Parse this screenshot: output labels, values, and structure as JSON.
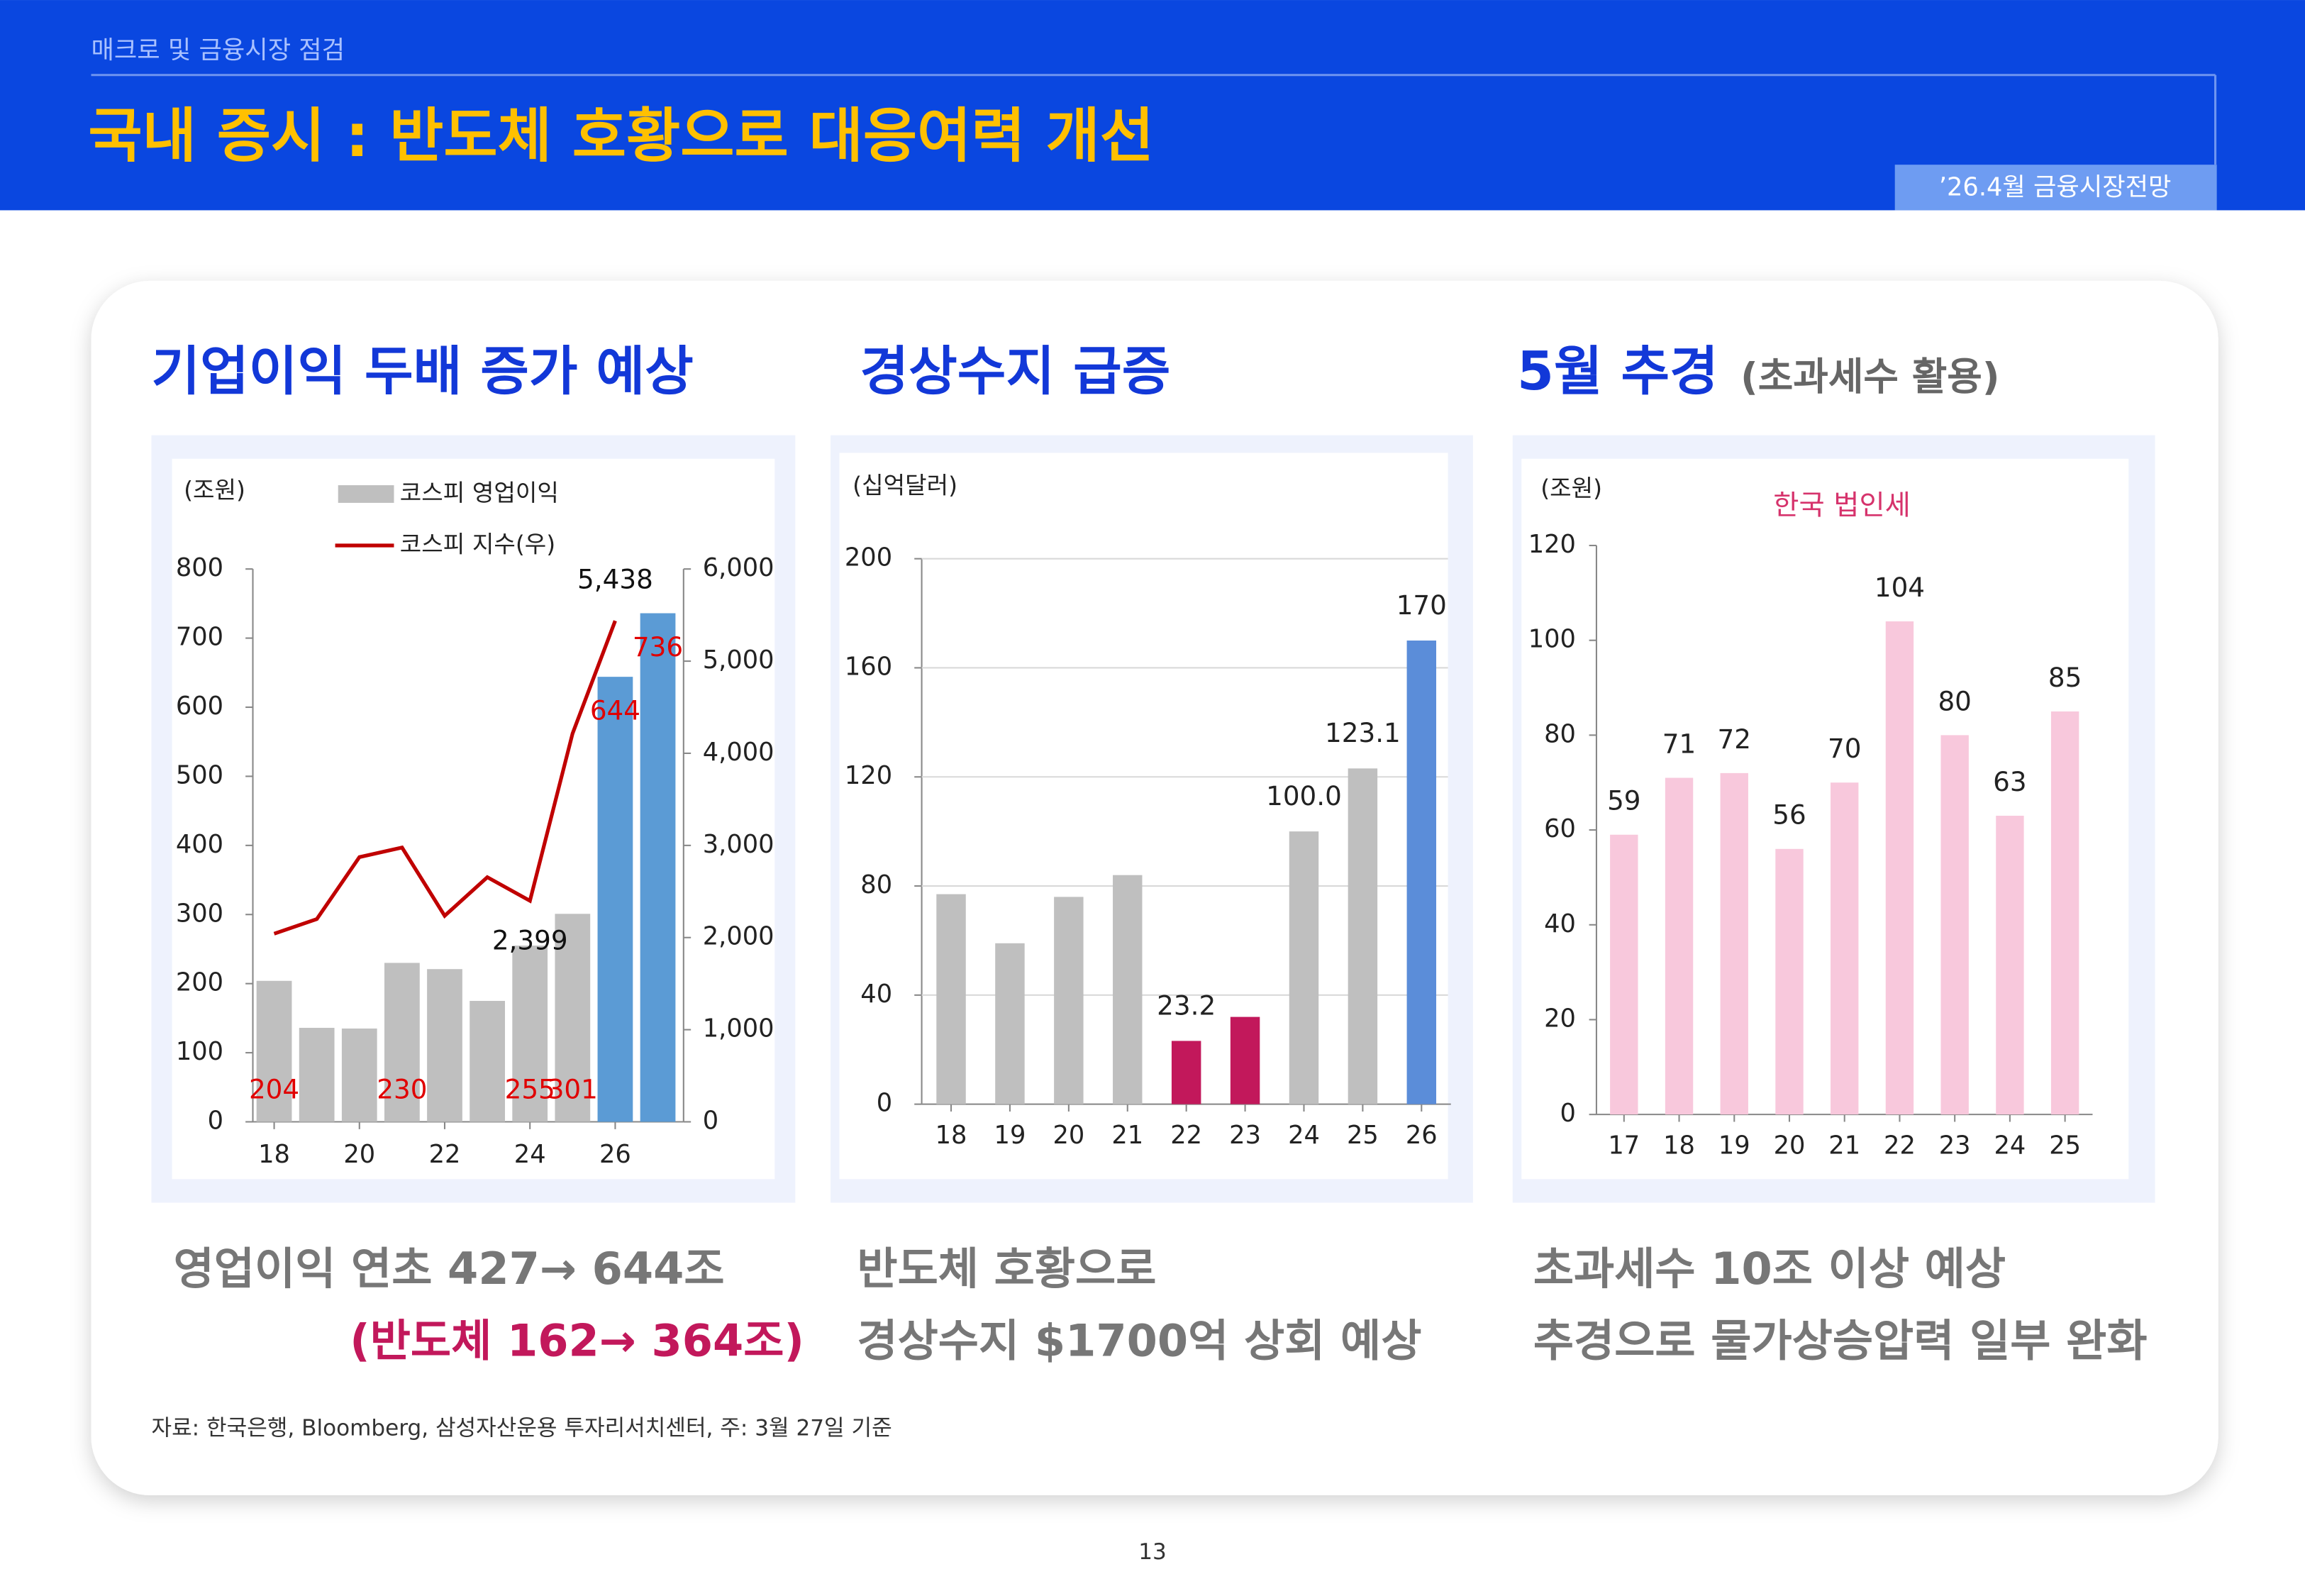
{
  "header": {
    "section": "매크로 및 금융시장 점검",
    "title": "국내 증시 : 반도체 호황으로 대응여력 개선",
    "badge": "’26.4월 금융시장전망"
  },
  "panels": [
    {
      "title": "기업이익 두배 증가 예상",
      "caption": [
        "영업이익 연초 427→ 644조",
        "(반도체 162→ 364조)"
      ]
    },
    {
      "title": "경상수지 급증",
      "caption": [
        "반도체 호황으로",
        "경상수지 $1700억 상회 예상"
      ]
    },
    {
      "title": "5월 추경",
      "subtitle": "(초과세수 활용)",
      "caption": [
        "초과세수 10조 이상 예상",
        "추경으로 물가상승압력 일부 완화"
      ]
    }
  ],
  "source": "자료: 한국은행, Bloomberg, 삼성자산운용 투자리서치센터, 주: 3월 27일 기준",
  "page_number": "13",
  "chart_data": [
    {
      "type": "combo",
      "unit": "(조원)",
      "categories": [
        "18",
        null,
        "20",
        null,
        "22",
        null,
        "24",
        null,
        "26",
        null
      ],
      "series": [
        {
          "name": "코스피 영업이익",
          "type": "bar",
          "colors": [
            "#bfbfbf",
            "#bfbfbf",
            "#bfbfbf",
            "#bfbfbf",
            "#bfbfbf",
            "#bfbfbf",
            "#bfbfbf",
            "#bfbfbf",
            "#5b9bd5",
            "#5b9bd5"
          ],
          "values": [
            204,
            136,
            135,
            230,
            221,
            175,
            255,
            301,
            644,
            736
          ],
          "value_labels": [
            "204",
            null,
            null,
            "230",
            null,
            null,
            "255",
            "301",
            "644",
            "736"
          ]
        },
        {
          "name": "코스피 지수(우)",
          "type": "line",
          "axis": "y2",
          "color": "#c00000",
          "values": [
            2042,
            2200,
            2873,
            2977,
            2236,
            2655,
            2399,
            4215,
            5438,
            null
          ],
          "value_labels": [
            null,
            null,
            null,
            null,
            null,
            null,
            "2,399",
            null,
            "5,438",
            null
          ]
        }
      ],
      "ylim": [
        0,
        800
      ],
      "yticks": [
        0,
        100,
        200,
        300,
        400,
        500,
        600,
        700,
        800
      ],
      "y2lim": [
        0,
        6000
      ],
      "y2ticks": [
        0,
        {
          "value": 1000,
          "label": "1,000"
        },
        {
          "value": 2000,
          "label": "2,000"
        },
        {
          "value": 3000,
          "label": "3,000"
        },
        {
          "value": 4000,
          "label": "4,000"
        },
        {
          "value": 5000,
          "label": "5,000"
        },
        {
          "value": 6000,
          "label": "6,000"
        }
      ],
      "grid": false,
      "legend": "top"
    },
    {
      "type": "bar",
      "unit": "(십억달러)",
      "categories": [
        "18",
        "19",
        "20",
        "21",
        "22",
        "23",
        "24",
        "25",
        "26"
      ],
      "values": [
        77,
        59,
        76,
        84,
        23.2,
        32,
        100,
        123.1,
        170
      ],
      "value_labels": [
        null,
        null,
        null,
        null,
        "23.2",
        null,
        "100.0",
        "123.1",
        "170"
      ],
      "colors": [
        "#bfbfbf",
        "#bfbfbf",
        "#bfbfbf",
        "#bfbfbf",
        "#c2185b",
        "#c2185b",
        "#bfbfbf",
        "#bfbfbf",
        "#5b8dd9"
      ],
      "ylim": [
        0,
        200
      ],
      "yticks": [
        0,
        40,
        80,
        120,
        160,
        200
      ],
      "grid": true
    },
    {
      "type": "bar",
      "unit": "(조원)",
      "annotation": "한국 법인세",
      "categories": [
        "17",
        "18",
        "19",
        "20",
        "21",
        "22",
        "23",
        "24",
        "25"
      ],
      "values": [
        59,
        71,
        72,
        56,
        70,
        104,
        80,
        63,
        85
      ],
      "color": "#f8c8dc",
      "ylim": [
        0,
        120
      ],
      "yticks": [
        0,
        20,
        40,
        60,
        80,
        100,
        120
      ],
      "grid": false
    }
  ]
}
